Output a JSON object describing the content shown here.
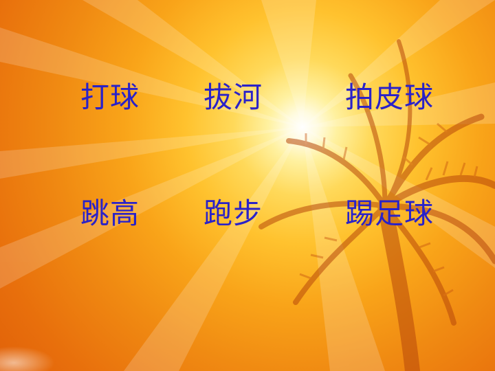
{
  "slide": {
    "background": {
      "sun_color": "#ffffff",
      "glow_color": "#ffd95a",
      "edge_color": "#de5c08",
      "palm_color": "#b8480a"
    },
    "text_color": "#2a22c8",
    "words": [
      "打球",
      "拔河",
      "拍皮球",
      "跳高",
      "跑步",
      "踢足球"
    ]
  }
}
